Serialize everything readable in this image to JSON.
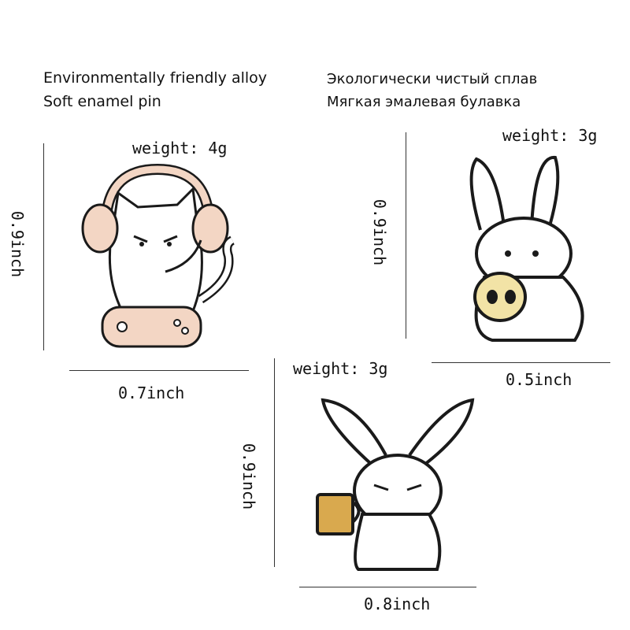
{
  "header": {
    "material_en": "Environmentally friendly alloy",
    "type_en": "Soft enamel pin",
    "material_ru": "Экологически чистый сплав",
    "type_ru": "Мягкая эмалевая булавка"
  },
  "pins": [
    {
      "name": "gamer cat with headphones",
      "weight": "weight: 4g",
      "height": "0.9inch",
      "width": "0.7inch"
    },
    {
      "name": "bunny holding skull",
      "weight": "weight: 3g",
      "height": "0.9inch",
      "width": "0.5inch"
    },
    {
      "name": "bunny holding coffee mug",
      "weight": "weight: 3g",
      "height": "0.9inch",
      "width": "0.8inch"
    }
  ],
  "colors": {
    "enamel_white": "#ffffff",
    "outline": "#1a1a1a",
    "headphone_pink": "#f3d6c4",
    "skull_yellow": "#f2e3a6",
    "mug_ochre": "#d9a94e"
  }
}
